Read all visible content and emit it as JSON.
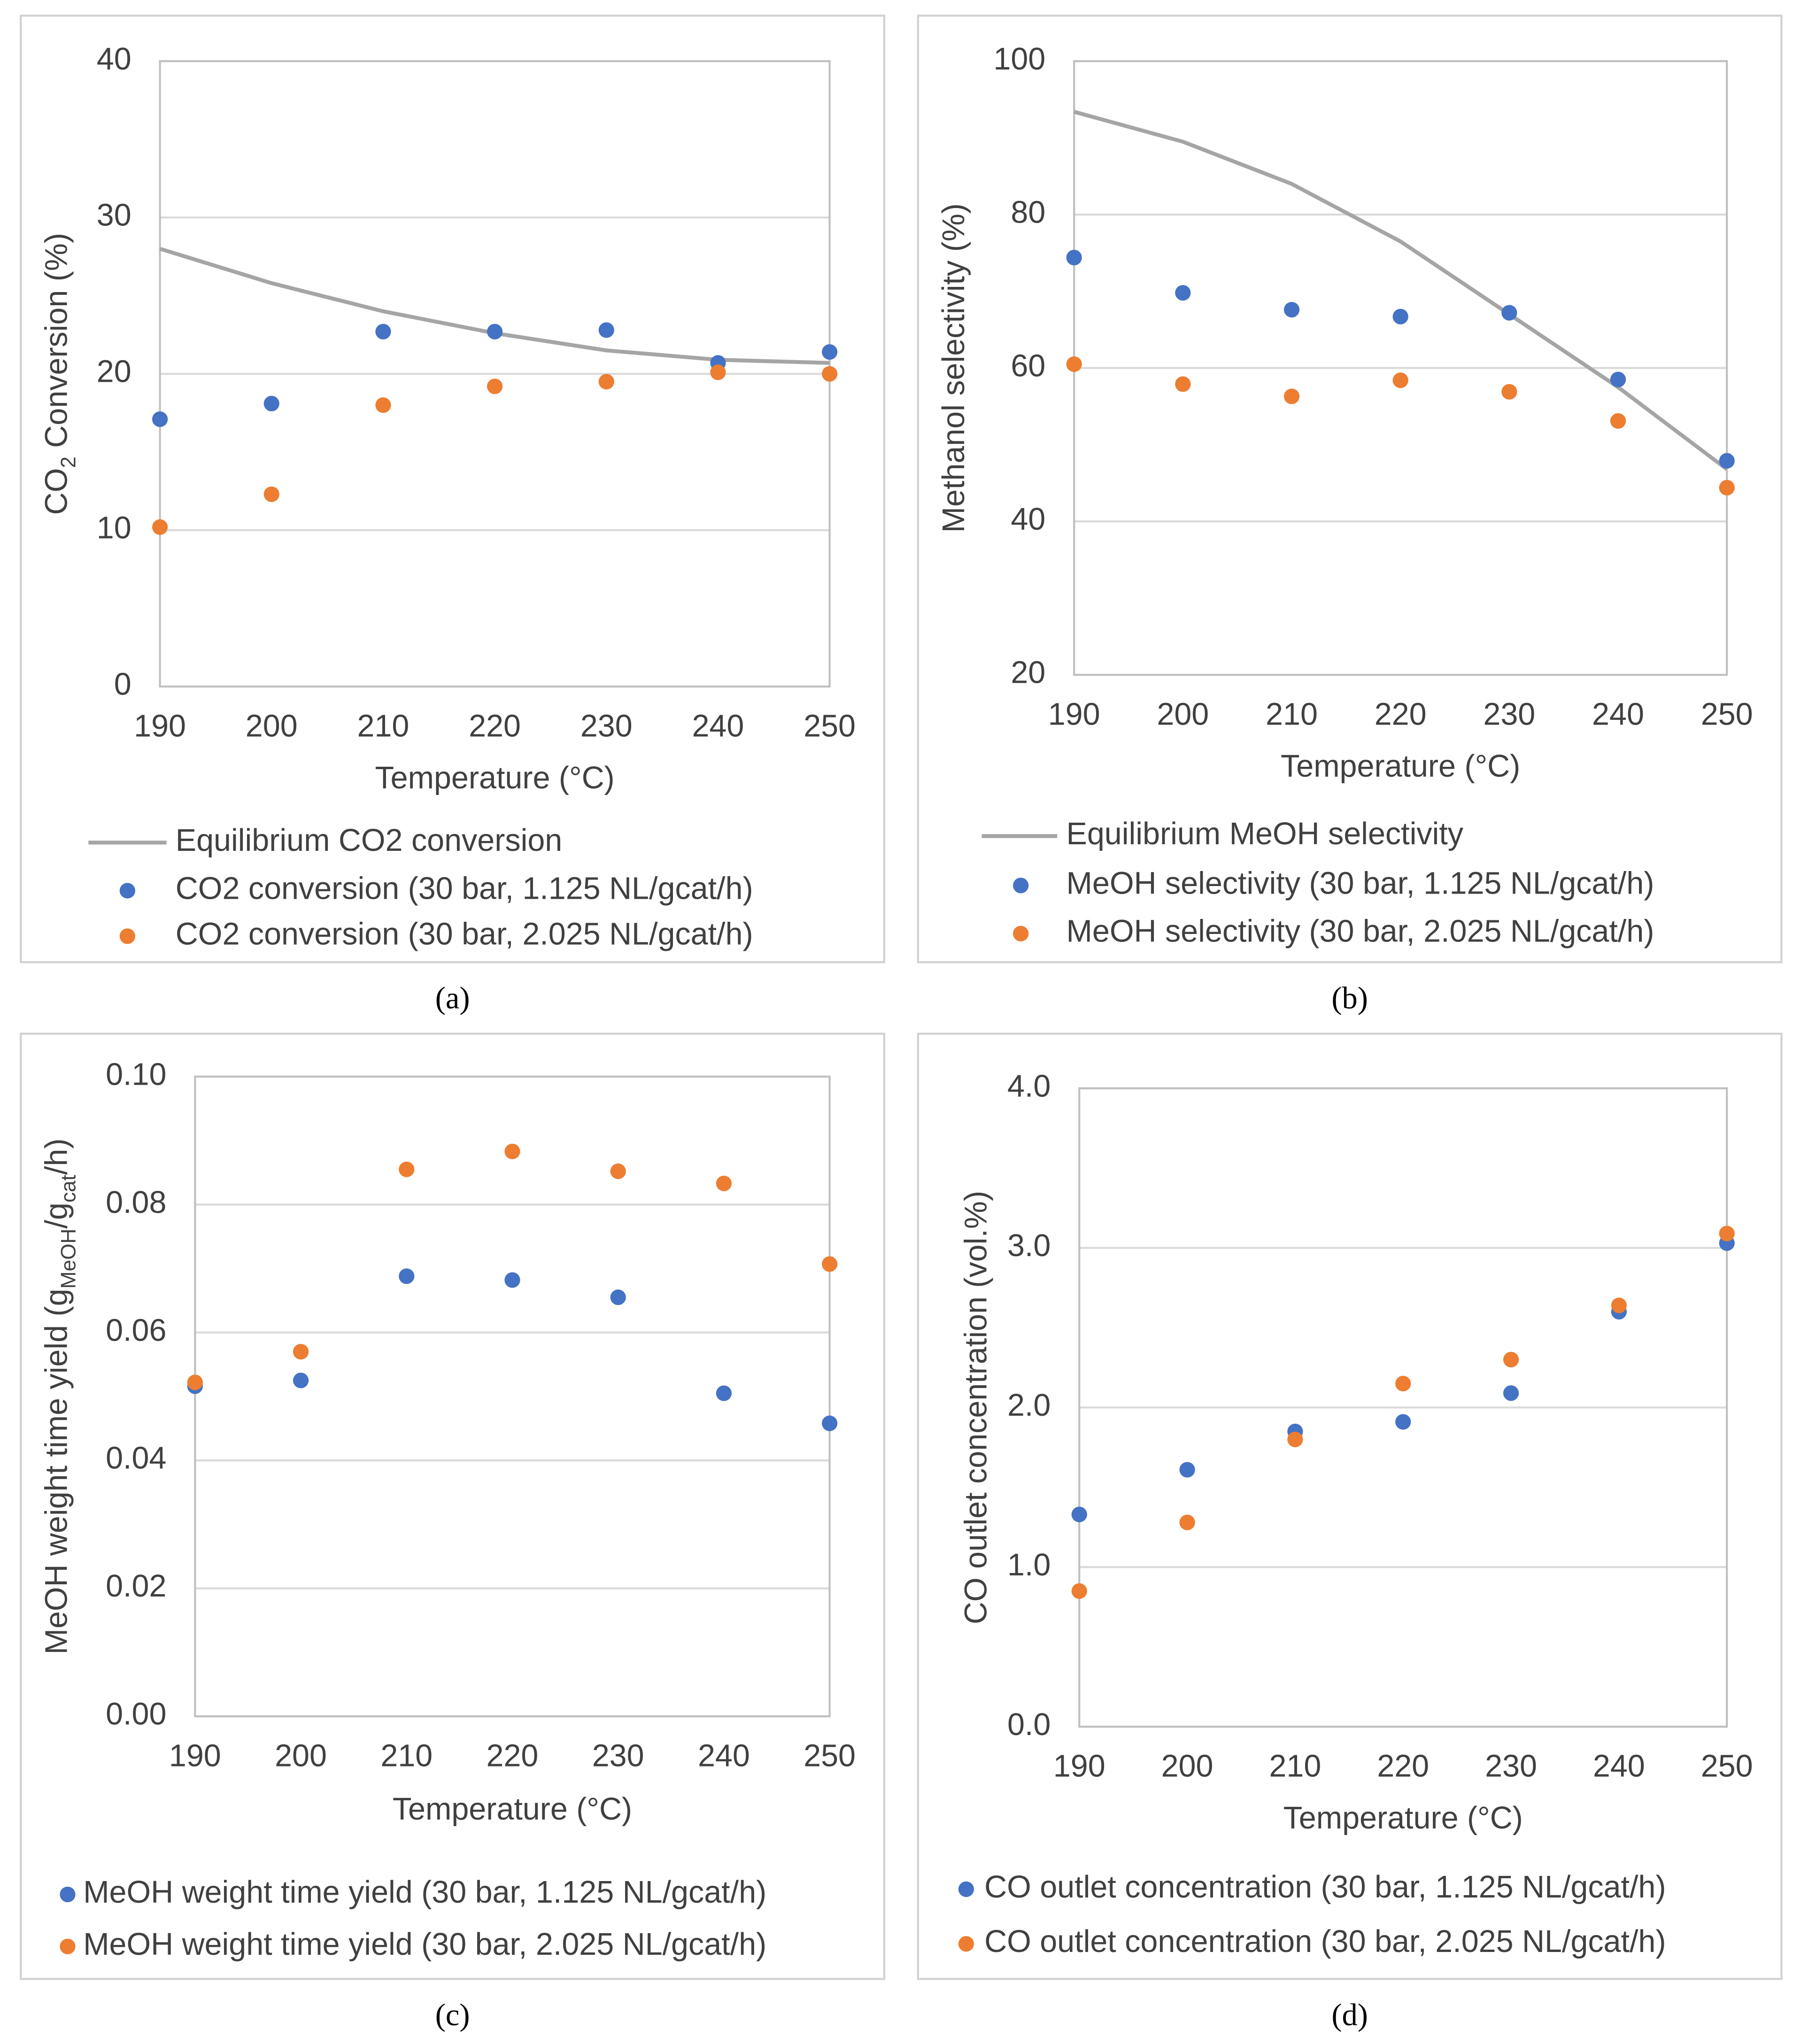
{
  "chart_data": [
    {
      "type": "scatter",
      "caption": "(a)",
      "ylabel_parts": [
        {
          "text": "CO",
          "sub": false
        },
        {
          "text": "2",
          "sub": true
        },
        {
          "text": " Conversion (%)",
          "sub": false
        }
      ],
      "xlabel": "Temperature (°C)",
      "x": [
        190,
        200,
        210,
        220,
        230,
        240,
        250
      ],
      "xlim": [
        190,
        250
      ],
      "xticks": [
        190,
        200,
        210,
        220,
        230,
        240,
        250
      ],
      "ylim": [
        0,
        40
      ],
      "yticks": [
        0,
        10,
        20,
        30,
        40
      ],
      "grid": true,
      "series": [
        {
          "name": "Equilibrium CO2 conversion",
          "type": "line",
          "color": "#a5a5a5",
          "values": [
            28,
            25.8,
            24,
            22.6,
            21.5,
            20.9,
            20.7
          ]
        },
        {
          "name": "CO2 conversion (30 bar, 1.125 NL/gcat/h)",
          "type": "scatter",
          "color": "#4472c4",
          "values": [
            17.1,
            18.1,
            22.7,
            22.7,
            22.8,
            20.7,
            21.4
          ]
        },
        {
          "name": "CO2 conversion (30 bar, 2.025 NL/gcat/h)",
          "type": "scatter",
          "color": "#ed7d31",
          "values": [
            10.2,
            12.3,
            18,
            19.2,
            19.5,
            20.1,
            20.0
          ]
        }
      ]
    },
    {
      "type": "scatter",
      "caption": "(b)",
      "ylabel_parts": [
        {
          "text": "Methanol selectivity (%)",
          "sub": false
        }
      ],
      "xlabel": "Temperature (°C)",
      "x": [
        190,
        200,
        210,
        220,
        230,
        240,
        250
      ],
      "xlim": [
        190,
        250
      ],
      "xticks": [
        190,
        200,
        210,
        220,
        230,
        240,
        250
      ],
      "ylim": [
        20,
        100
      ],
      "yticks": [
        20,
        40,
        60,
        80,
        100
      ],
      "grid": true,
      "series": [
        {
          "name": "Equilibrium MeOH selectivity",
          "type": "line",
          "color": "#a5a5a5",
          "values": [
            93.4,
            89.5,
            84,
            76.5,
            67,
            57.5,
            46.8
          ]
        },
        {
          "name": "MeOH selectivity (30 bar, 1.125 NL/gcat/h)",
          "type": "scatter",
          "color": "#4472c4",
          "values": [
            74.4,
            69.8,
            67.6,
            66.7,
            67.2,
            58.5,
            47.9
          ]
        },
        {
          "name": "MeOH selectivity (30 bar, 2.025 NL/gcat/h)",
          "type": "scatter",
          "color": "#ed7d31",
          "values": [
            60.5,
            57.9,
            56.3,
            58.4,
            56.9,
            53.1,
            44.4
          ]
        }
      ]
    },
    {
      "type": "scatter",
      "caption": "(c)",
      "ylabel_parts": [
        {
          "text": "MeOH weight time yield (g",
          "sub": false
        },
        {
          "text": "MeOH",
          "sub": true
        },
        {
          "text": "/g",
          "sub": false
        },
        {
          "text": "cat",
          "sub": true
        },
        {
          "text": "/h)",
          "sub": false
        }
      ],
      "xlabel": "Temperature (°C)",
      "x": [
        190,
        200,
        210,
        220,
        230,
        240,
        250
      ],
      "xlim": [
        190,
        250
      ],
      "xticks": [
        190,
        200,
        210,
        220,
        230,
        240,
        250
      ],
      "ylim": [
        0,
        0.1
      ],
      "yticks": [
        {
          "value": 0,
          "label": "0.00"
        },
        {
          "value": 0.02,
          "label": "0.02"
        },
        {
          "value": 0.04,
          "label": "0.04"
        },
        {
          "value": 0.06,
          "label": "0.06"
        },
        {
          "value": 0.08,
          "label": "0.08"
        },
        {
          "value": 0.1,
          "label": "0.10"
        }
      ],
      "grid": true,
      "series": [
        {
          "name": "MeOH weight time yield (30 bar, 1.125 NL/gcat/h)",
          "type": "scatter",
          "color": "#4472c4",
          "values": [
            0.0516,
            0.0525,
            0.0688,
            0.0682,
            0.0655,
            0.0505,
            0.0458
          ]
        },
        {
          "name": "MeOH weight time yield (30 bar, 2.025 NL/gcat/h)",
          "type": "scatter",
          "color": "#ed7d31",
          "values": [
            0.0522,
            0.057,
            0.0855,
            0.0883,
            0.0852,
            0.0833,
            0.0707
          ]
        }
      ]
    },
    {
      "type": "scatter",
      "caption": "(d)",
      "ylabel_parts": [
        {
          "text": "CO outlet concentration (vol.%)",
          "sub": false
        }
      ],
      "xlabel": "Temperature (°C)",
      "x": [
        190,
        200,
        210,
        220,
        230,
        240,
        250
      ],
      "xlim": [
        190,
        250
      ],
      "xticks": [
        190,
        200,
        210,
        220,
        230,
        240,
        250
      ],
      "ylim": [
        0,
        4
      ],
      "yticks": [
        {
          "value": 0,
          "label": "0.0"
        },
        {
          "value": 1,
          "label": "1.0"
        },
        {
          "value": 2,
          "label": "2.0"
        },
        {
          "value": 3,
          "label": "3.0"
        },
        {
          "value": 4,
          "label": "4.0"
        }
      ],
      "grid": true,
      "series": [
        {
          "name": "CO outlet concentration (30 bar, 1.125 NL/gcat/h)",
          "type": "scatter",
          "color": "#4472c4",
          "values": [
            1.33,
            1.61,
            1.85,
            1.91,
            2.09,
            2.6,
            3.03
          ]
        },
        {
          "name": "CO outlet concentration (30 bar, 2.025 NL/gcat/h)",
          "type": "scatter",
          "color": "#ed7d31",
          "values": [
            0.85,
            1.28,
            1.8,
            2.15,
            2.3,
            2.64,
            3.09
          ]
        }
      ]
    }
  ]
}
